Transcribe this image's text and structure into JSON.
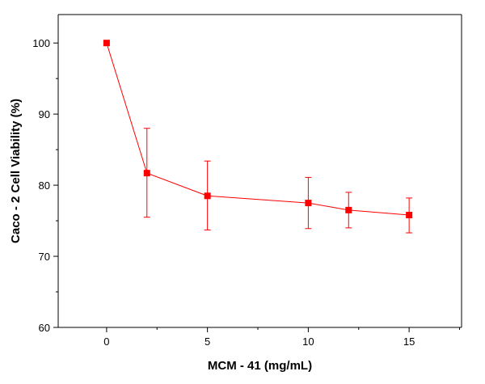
{
  "chart_data": {
    "type": "line",
    "title": "",
    "xlabel": "MCM - 41 (mg/mL)",
    "ylabel": "Caco - 2 Cell Viability (%)",
    "xlim": [
      -2.4,
      17.6
    ],
    "ylim": [
      60,
      104
    ],
    "x_ticks": [
      0,
      5,
      10,
      15
    ],
    "y_ticks": [
      60,
      70,
      80,
      90,
      100
    ],
    "grid": false,
    "legend": "none",
    "series": [
      {
        "color": "#ff0000",
        "marker": "square",
        "x": [
          0,
          2,
          5,
          10,
          12,
          15
        ],
        "y": [
          100,
          81.7,
          78.5,
          77.5,
          76.5,
          75.8
        ],
        "error_upper": [
          100,
          88.0,
          83.4,
          81.1,
          79.0,
          78.2
        ],
        "error_lower": [
          100,
          75.5,
          73.7,
          73.9,
          74.0,
          73.3
        ]
      }
    ]
  }
}
